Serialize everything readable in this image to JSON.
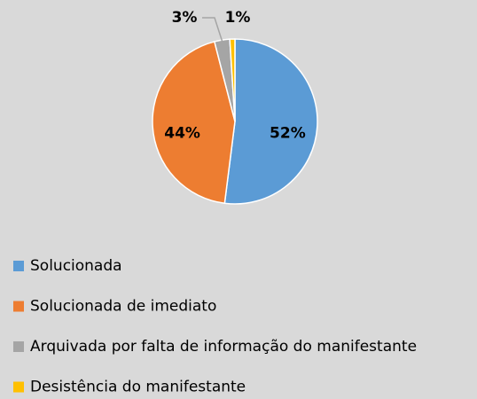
{
  "chart_data": {
    "type": "pie",
    "categories": [
      "Solucionada",
      "Solucionada de imediato",
      "Arquivada por falta de informação do manifestante",
      "Desistência do manifestante"
    ],
    "values": [
      52,
      44,
      3,
      1
    ],
    "value_labels": [
      "52%",
      "44%",
      "3%",
      "1%"
    ],
    "colors": [
      "#5b9bd5",
      "#ed7d31",
      "#a5a5a5",
      "#ffc000"
    ],
    "legend": "bottom"
  }
}
